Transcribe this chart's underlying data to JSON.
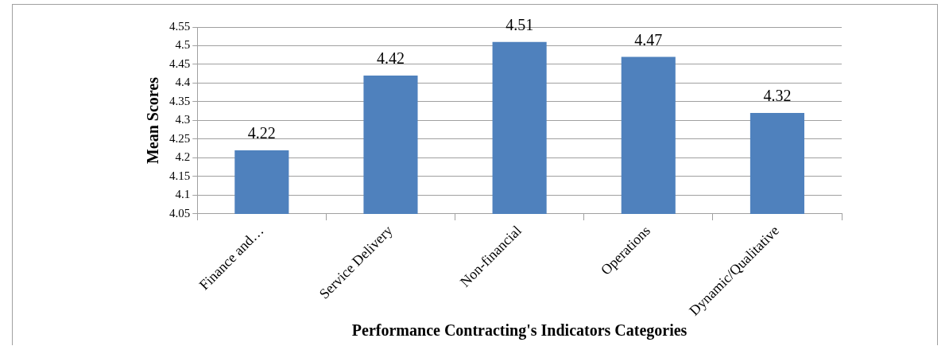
{
  "chart_data": {
    "type": "bar",
    "xlabel": "Performance Contracting's Indicators Categories",
    "ylabel": "Mean Scores",
    "categories": [
      "Finance and…",
      "Service Delivery",
      "Non-financial",
      "Operations",
      "Dynamic/Qualitative"
    ],
    "values": [
      4.22,
      4.42,
      4.51,
      4.47,
      4.32
    ],
    "color": "#4f81bd",
    "ylim": [
      4.05,
      4.55
    ],
    "yticks": [
      4.05,
      4.1,
      4.15,
      4.2,
      4.25,
      4.3,
      4.35,
      4.4,
      4.45,
      4.5,
      4.55
    ],
    "grid": "y",
    "data_labels": true
  }
}
